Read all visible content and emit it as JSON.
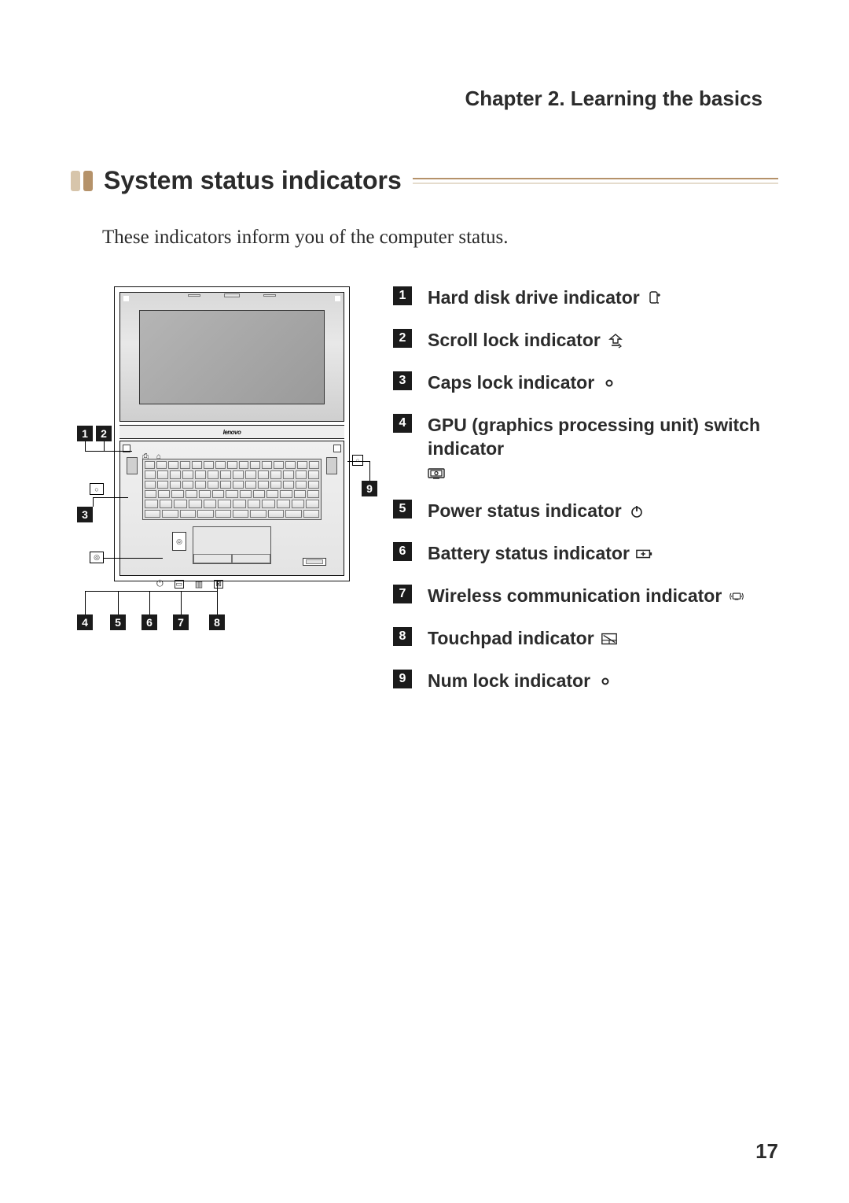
{
  "chapter_header": "Chapter 2. Learning the basics",
  "section_title": "System status indicators",
  "intro_text": "These indicators inform you of the computer status.",
  "page_number": "17",
  "colors": {
    "bullet_light": "#d7c5ab",
    "bullet_dark": "#b5926a",
    "callout_bg": "#1b1b1b",
    "callout_fg": "#ffffff",
    "rule_dark": "#b5926a",
    "rule_light": "#e5dccd"
  },
  "brand": "lenovo",
  "legend": [
    {
      "num": "1",
      "label": "Hard disk drive indicator",
      "icon": "hdd"
    },
    {
      "num": "2",
      "label": "Scroll lock indicator",
      "icon": "scroll-lock"
    },
    {
      "num": "3",
      "label": "Caps lock indicator",
      "icon": "caps-lock"
    },
    {
      "num": "4",
      "label": "GPU (graphics processing unit) switch indicator",
      "icon": "gpu"
    },
    {
      "num": "5",
      "label": "Power status indicator",
      "icon": "power"
    },
    {
      "num": "6",
      "label": "Battery status indicator",
      "icon": "battery"
    },
    {
      "num": "7",
      "label": "Wireless communication indicator",
      "icon": "wireless"
    },
    {
      "num": "8",
      "label": "Touchpad indicator",
      "icon": "touchpad"
    },
    {
      "num": "9",
      "label": "Num lock indicator",
      "icon": "num-lock"
    }
  ],
  "icons_svg": {
    "hdd": "<svg viewBox='0 0 20 20' width='20' height='20'><rect x='4' y='2' width='9' height='14' rx='2' fill='none' stroke='#222' stroke-width='1.4'/><circle cx='14' cy='16' r='1' fill='#222'/><line x1='13' y1='6' x2='17' y2='6' stroke='#222' stroke-width='1.4'/><line x1='15' y1='4' x2='15' y2='8' stroke='#222' stroke-width='1.4'/></svg>",
    "scroll-lock": "<svg viewBox='0 0 20 20' width='20' height='20'><polygon points='10,2 3,8 7,8 7,13 13,13 13,8 17,8' fill='none' stroke='#222' stroke-width='1.4'/><line x1='5' y1='16' x2='15' y2='16' stroke='#222' stroke-width='1.6'/><polyline points='14,14 17,17 14,19' fill='none' stroke='#222' stroke-width='1.2'/></svg>",
    "caps-lock": "<svg viewBox='0 0 20 20' width='20' height='20'><circle cx='10' cy='10' r='3.5' fill='none' stroke='#222' stroke-width='2'/></svg>",
    "gpu": "<svg viewBox='0 0 22 18' width='22' height='18'><rect x='1' y='4' width='20' height='11' rx='1' fill='none' stroke='#222' stroke-width='1.4'/><rect x='4' y='6' width='14' height='7' fill='none' stroke='#222' stroke-width='1.2'/><circle cx='11' cy='9.5' r='2' fill='none' stroke='#222' stroke-width='1.2'/><line x1='7' y1='16' x2='15' y2='16' stroke='#222' stroke-width='1.4'/></svg>",
    "power": "<svg viewBox='0 0 20 20' width='20' height='20'><circle cx='10' cy='11' r='6' fill='none' stroke='#222' stroke-width='1.6'/><line x1='10' y1='3' x2='10' y2='10' stroke='#222' stroke-width='1.8'/></svg>",
    "battery": "<svg viewBox='0 0 24 16' width='24' height='16'><rect x='1' y='3' width='18' height='10' fill='none' stroke='#222' stroke-width='1.6'/><rect x='19' y='6' width='3' height='4' fill='#222'/><line x1='7' y1='8' x2='13' y2='8' stroke='#222' stroke-width='1.6'/><line x1='10' y1='5' x2='10' y2='11' stroke='#222' stroke-width='1.6'/></svg>",
    "wireless": "<svg viewBox='0 0 28 18' width='28' height='18'><rect x='8' y='4' width='12' height='9' rx='1' fill='none' stroke='#222' stroke-width='1.4'/><line x1='11' y1='14' x2='17' y2='14' stroke='#222' stroke-width='1.4'/><path d='M5 4 Q2 9 5 14' fill='none' stroke='#222' stroke-width='1.3'/><path d='M23 4 Q26 9 23 14' fill='none' stroke='#222' stroke-width='1.3'/><circle cx='6' cy='9' r='0.9' fill='#222'/><circle cx='22' cy='9' r='0.9' fill='#222'/></svg>",
    "touchpad": "<svg viewBox='0 0 24 18' width='24' height='18'><rect x='2' y='2' width='20' height='14' fill='none' stroke='#222' stroke-width='1.5'/><line x1='2' y1='11' x2='22' y2='11' stroke='#222' stroke-width='1.3'/><line x1='12' y1='11' x2='12' y2='16' stroke='#222' stroke-width='1.3'/><line x1='4' y1='4' x2='20' y2='14' stroke='#222' stroke-width='1.4'/></svg>",
    "num-lock": "<svg viewBox='0 0 20 20' width='20' height='20'><circle cx='10' cy='10' r='3.5' fill='none' stroke='#222' stroke-width='2'/></svg>"
  },
  "diagram_callouts": {
    "c1": "1",
    "c2": "2",
    "c3": "3",
    "c4": "4",
    "c5": "5",
    "c6": "6",
    "c7": "7",
    "c8": "8",
    "c9": "9"
  },
  "keyboard_rows": [
    15,
    14,
    14,
    13,
    12,
    10
  ]
}
